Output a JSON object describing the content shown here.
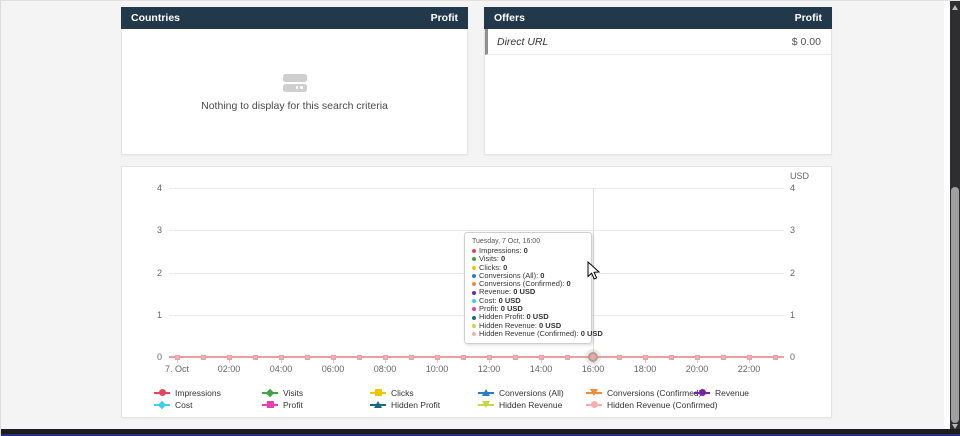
{
  "panels": {
    "countries": {
      "title": "Countries",
      "column": "Profit",
      "empty_text": "Nothing to display for this search criteria"
    },
    "offers": {
      "title": "Offers",
      "column": "Profit",
      "rows": [
        {
          "label": "Direct URL",
          "value": "$ 0.00"
        }
      ]
    }
  },
  "chart_data": {
    "type": "line",
    "title": "",
    "y_axis_label": "USD",
    "y_ticks": [
      4,
      3,
      2,
      1,
      0
    ],
    "ylim": [
      0,
      4
    ],
    "x_tick_labels": [
      "7. Oct",
      "02:00",
      "04:00",
      "06:00",
      "08:00",
      "10:00",
      "12:00",
      "14:00",
      "16:00",
      "18:00",
      "20:00",
      "22:00"
    ],
    "x": [
      "00:00",
      "01:00",
      "02:00",
      "03:00",
      "04:00",
      "05:00",
      "06:00",
      "07:00",
      "08:00",
      "09:00",
      "10:00",
      "11:00",
      "12:00",
      "13:00",
      "14:00",
      "15:00",
      "16:00",
      "17:00",
      "18:00",
      "19:00",
      "20:00",
      "21:00",
      "22:00",
      "23:00"
    ],
    "series": [
      {
        "name": "Impressions",
        "color": "#e0465e",
        "marker": "circle",
        "values": [
          0,
          0,
          0,
          0,
          0,
          0,
          0,
          0,
          0,
          0,
          0,
          0,
          0,
          0,
          0,
          0,
          0,
          0,
          0,
          0,
          0,
          0,
          0,
          0
        ]
      },
      {
        "name": "Visits",
        "color": "#41a341",
        "marker": "diamond",
        "values": [
          0,
          0,
          0,
          0,
          0,
          0,
          0,
          0,
          0,
          0,
          0,
          0,
          0,
          0,
          0,
          0,
          0,
          0,
          0,
          0,
          0,
          0,
          0,
          0
        ]
      },
      {
        "name": "Clicks",
        "color": "#f2c500",
        "marker": "square",
        "values": [
          0,
          0,
          0,
          0,
          0,
          0,
          0,
          0,
          0,
          0,
          0,
          0,
          0,
          0,
          0,
          0,
          0,
          0,
          0,
          0,
          0,
          0,
          0,
          0
        ]
      },
      {
        "name": "Conversions (All)",
        "color": "#2d7bc1",
        "marker": "triangle",
        "values": [
          0,
          0,
          0,
          0,
          0,
          0,
          0,
          0,
          0,
          0,
          0,
          0,
          0,
          0,
          0,
          0,
          0,
          0,
          0,
          0,
          0,
          0,
          0,
          0
        ]
      },
      {
        "name": "Conversions (Confirmed)",
        "color": "#ef8d38",
        "marker": "triangle-down",
        "values": [
          0,
          0,
          0,
          0,
          0,
          0,
          0,
          0,
          0,
          0,
          0,
          0,
          0,
          0,
          0,
          0,
          0,
          0,
          0,
          0,
          0,
          0,
          0,
          0
        ]
      },
      {
        "name": "Revenue",
        "color": "#7b24a3",
        "marker": "circle",
        "values": [
          0,
          0,
          0,
          0,
          0,
          0,
          0,
          0,
          0,
          0,
          0,
          0,
          0,
          0,
          0,
          0,
          0,
          0,
          0,
          0,
          0,
          0,
          0,
          0
        ]
      },
      {
        "name": "Cost",
        "color": "#3ed0e9",
        "marker": "diamond",
        "values": [
          0,
          0,
          0,
          0,
          0,
          0,
          0,
          0,
          0,
          0,
          0,
          0,
          0,
          0,
          0,
          0,
          0,
          0,
          0,
          0,
          0,
          0,
          0,
          0
        ]
      },
      {
        "name": "Profit",
        "color": "#e83fb1",
        "marker": "square",
        "values": [
          0,
          0,
          0,
          0,
          0,
          0,
          0,
          0,
          0,
          0,
          0,
          0,
          0,
          0,
          0,
          0,
          0,
          0,
          0,
          0,
          0,
          0,
          0,
          0
        ]
      },
      {
        "name": "Hidden Profit",
        "color": "#176a7e",
        "marker": "triangle",
        "values": [
          0,
          0,
          0,
          0,
          0,
          0,
          0,
          0,
          0,
          0,
          0,
          0,
          0,
          0,
          0,
          0,
          0,
          0,
          0,
          0,
          0,
          0,
          0,
          0
        ]
      },
      {
        "name": "Hidden Revenue",
        "color": "#c3d945",
        "marker": "triangle-down",
        "values": [
          0,
          0,
          0,
          0,
          0,
          0,
          0,
          0,
          0,
          0,
          0,
          0,
          0,
          0,
          0,
          0,
          0,
          0,
          0,
          0,
          0,
          0,
          0,
          0
        ]
      },
      {
        "name": "Hidden Revenue (Confirmed)",
        "color": "#f3b0ad",
        "marker": "circle",
        "values": [
          0,
          0,
          0,
          0,
          0,
          0,
          0,
          0,
          0,
          0,
          0,
          0,
          0,
          0,
          0,
          0,
          0,
          0,
          0,
          0,
          0,
          0,
          0,
          0
        ]
      }
    ],
    "hover": {
      "x": "16:00",
      "hour_index": 16
    },
    "tooltip": {
      "header": "Tuesday, 7 Oct, 16:00",
      "rows": [
        {
          "label": "Impressions",
          "value": "0",
          "color": "#e0465e"
        },
        {
          "label": "Visits",
          "value": "0",
          "color": "#41a341"
        },
        {
          "label": "Clicks",
          "value": "0",
          "color": "#f2c500"
        },
        {
          "label": "Conversions (All)",
          "value": "0",
          "color": "#2d7bc1"
        },
        {
          "label": "Conversions (Confirmed)",
          "value": "0",
          "color": "#ef8d38"
        },
        {
          "label": "Revenue",
          "value": "0 USD",
          "color": "#7b24a3"
        },
        {
          "label": "Cost",
          "value": "0 USD",
          "color": "#3ed0e9"
        },
        {
          "label": "Profit",
          "value": "0 USD",
          "color": "#e83fb1"
        },
        {
          "label": "Hidden Profit",
          "value": "0 USD",
          "color": "#176a7e"
        },
        {
          "label": "Hidden Revenue",
          "value": "0 USD",
          "color": "#c3d945"
        },
        {
          "label": "Hidden Revenue (Confirmed)",
          "value": "0 USD",
          "color": "#f3b0ad"
        }
      ]
    },
    "style": {
      "line_color": "#e79f9f",
      "marker_color": "#f4afb4",
      "grid_color": "#e9e9e9",
      "header_bg": "#21394a"
    }
  }
}
